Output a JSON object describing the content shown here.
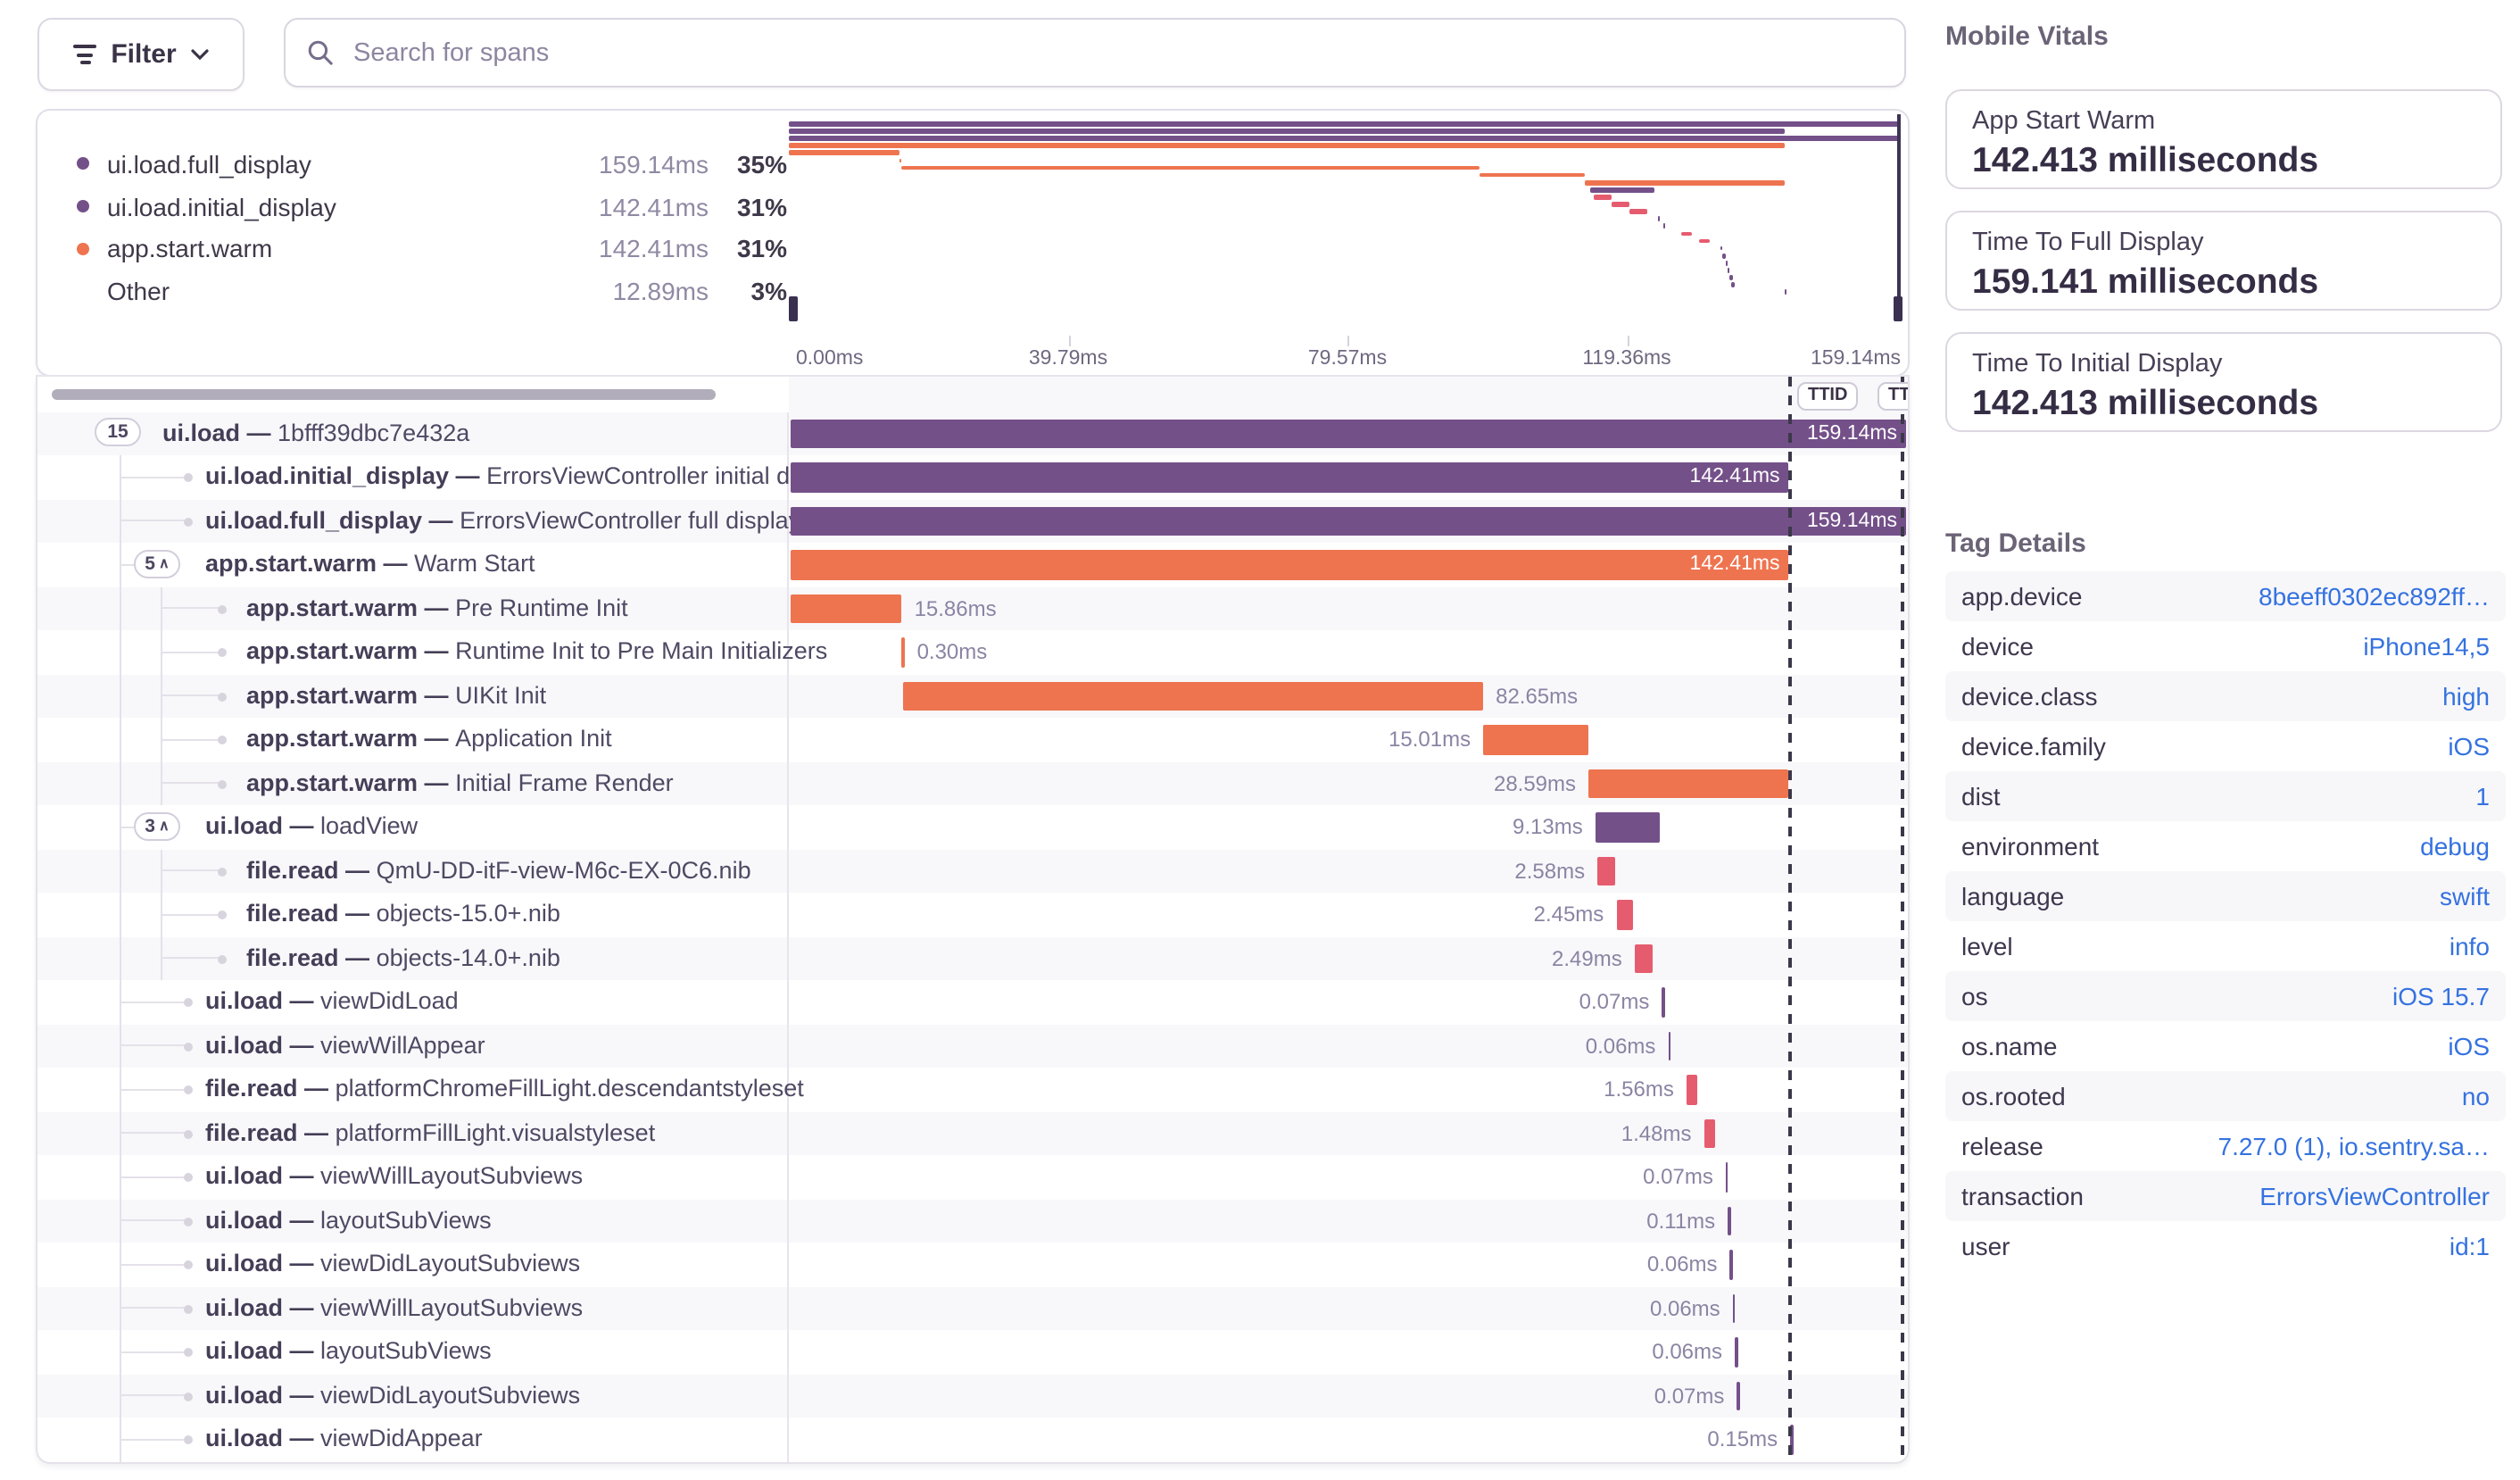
{
  "toolbar": {
    "filter_label": "Filter",
    "search_placeholder": "Search for spans"
  },
  "legend": {
    "items": [
      {
        "name": "ui.load.full_display",
        "dot": "purple",
        "value": "159.14ms",
        "pct": "35%"
      },
      {
        "name": "ui.load.initial_display",
        "dot": "purple",
        "value": "142.41ms",
        "pct": "31%"
      },
      {
        "name": "app.start.warm",
        "dot": "orange",
        "value": "142.41ms",
        "pct": "31%"
      },
      {
        "name": "Other",
        "dot": "none",
        "value": "12.89ms",
        "pct": "3%"
      }
    ]
  },
  "axis": {
    "ticks": [
      "0.00ms",
      "39.79ms",
      "79.57ms",
      "119.36ms",
      "159.14ms"
    ]
  },
  "markers": {
    "ttid": "TTID",
    "ttfd": "TTFD",
    "ttid_ms": 142.41,
    "ttfd_ms": 159.14
  },
  "waterfall": {
    "total_ms": 159.14
  },
  "rows": [
    {
      "op": "ui.load",
      "desc": "1bfff39dbc7e432a",
      "count": "15",
      "chevron": false,
      "indent": 0,
      "bar": {
        "start": 0,
        "dur": 159.14,
        "color": "purple",
        "label": "159.14ms",
        "pos": "inside"
      }
    },
    {
      "op": "ui.load.initial_display",
      "desc": "ErrorsViewController initial display",
      "count": null,
      "chevron": false,
      "indent": 1,
      "bar": {
        "start": 0,
        "dur": 142.41,
        "color": "purple",
        "label": "142.41ms",
        "pos": "inside"
      }
    },
    {
      "op": "ui.load.full_display",
      "desc": "ErrorsViewController full display",
      "count": null,
      "chevron": false,
      "indent": 1,
      "bar": {
        "start": 0,
        "dur": 159.14,
        "color": "purple",
        "label": "159.14ms",
        "pos": "inside"
      }
    },
    {
      "op": "app.start.warm",
      "desc": "Warm Start",
      "count": "5",
      "chevron": true,
      "indent": 1,
      "bar": {
        "start": 0,
        "dur": 142.41,
        "color": "orange",
        "label": "142.41ms",
        "pos": "inside"
      }
    },
    {
      "op": "app.start.warm",
      "desc": "Pre Runtime Init",
      "count": null,
      "chevron": false,
      "indent": 2,
      "bar": {
        "start": 0,
        "dur": 15.86,
        "color": "orange",
        "label": "15.86ms",
        "pos": "right"
      }
    },
    {
      "op": "app.start.warm",
      "desc": "Runtime Init to Pre Main Initializers",
      "count": null,
      "chevron": false,
      "indent": 2,
      "bar": {
        "start": 15.86,
        "dur": 0.3,
        "color": "orange",
        "label": "0.30ms",
        "pos": "right"
      }
    },
    {
      "op": "app.start.warm",
      "desc": "UIKit Init",
      "count": null,
      "chevron": false,
      "indent": 2,
      "bar": {
        "start": 16.16,
        "dur": 82.65,
        "color": "orange",
        "label": "82.65ms",
        "pos": "right"
      }
    },
    {
      "op": "app.start.warm",
      "desc": "Application Init",
      "count": null,
      "chevron": false,
      "indent": 2,
      "bar": {
        "start": 98.81,
        "dur": 15.01,
        "color": "orange",
        "label": "15.01ms",
        "pos": "left"
      }
    },
    {
      "op": "app.start.warm",
      "desc": "Initial Frame Render",
      "count": null,
      "chevron": false,
      "indent": 2,
      "bar": {
        "start": 113.82,
        "dur": 28.59,
        "color": "orange",
        "label": "28.59ms",
        "pos": "left"
      }
    },
    {
      "op": "ui.load",
      "desc": "loadView",
      "count": "3",
      "chevron": true,
      "indent": 1,
      "bar": {
        "start": 114.8,
        "dur": 9.13,
        "color": "purple",
        "label": "9.13ms",
        "pos": "left"
      }
    },
    {
      "op": "file.read",
      "desc": "QmU-DD-itF-view-M6c-EX-0C6.nib",
      "count": null,
      "chevron": false,
      "indent": 2,
      "bar": {
        "start": 115.1,
        "dur": 2.58,
        "color": "pink",
        "label": "2.58ms",
        "pos": "left"
      }
    },
    {
      "op": "file.read",
      "desc": "objects-15.0+.nib",
      "count": null,
      "chevron": false,
      "indent": 2,
      "bar": {
        "start": 117.8,
        "dur": 2.45,
        "color": "pink",
        "label": "2.45ms",
        "pos": "left"
      }
    },
    {
      "op": "file.read",
      "desc": "objects-14.0+.nib",
      "count": null,
      "chevron": false,
      "indent": 2,
      "bar": {
        "start": 120.4,
        "dur": 2.49,
        "color": "pink",
        "label": "2.49ms",
        "pos": "left"
      }
    },
    {
      "op": "ui.load",
      "desc": "viewDidLoad",
      "count": null,
      "chevron": false,
      "indent": 1,
      "bar": {
        "start": 124.3,
        "dur": 0.07,
        "color": "purple",
        "label": "0.07ms",
        "pos": "left"
      }
    },
    {
      "op": "ui.load",
      "desc": "viewWillAppear",
      "count": null,
      "chevron": false,
      "indent": 1,
      "bar": {
        "start": 125.2,
        "dur": 0.06,
        "color": "purple",
        "label": "0.06ms",
        "pos": "left"
      }
    },
    {
      "op": "file.read",
      "desc": "platformChromeFillLight.descendantstyleset",
      "count": null,
      "chevron": false,
      "indent": 1,
      "bar": {
        "start": 127.8,
        "dur": 1.56,
        "color": "pink",
        "label": "1.56ms",
        "pos": "left"
      }
    },
    {
      "op": "file.read",
      "desc": "platformFillLight.visualstyleset",
      "count": null,
      "chevron": false,
      "indent": 1,
      "bar": {
        "start": 130.3,
        "dur": 1.48,
        "color": "pink",
        "label": "1.48ms",
        "pos": "left"
      }
    },
    {
      "op": "ui.load",
      "desc": "viewWillLayoutSubviews",
      "count": null,
      "chevron": false,
      "indent": 1,
      "bar": {
        "start": 133.4,
        "dur": 0.07,
        "color": "purple",
        "label": "0.07ms",
        "pos": "left"
      }
    },
    {
      "op": "ui.load",
      "desc": "layoutSubViews",
      "count": null,
      "chevron": false,
      "indent": 1,
      "bar": {
        "start": 133.7,
        "dur": 0.11,
        "color": "purple",
        "label": "0.11ms",
        "pos": "left"
      }
    },
    {
      "op": "ui.load",
      "desc": "viewDidLayoutSubviews",
      "count": null,
      "chevron": false,
      "indent": 1,
      "bar": {
        "start": 134.0,
        "dur": 0.06,
        "color": "purple",
        "label": "0.06ms",
        "pos": "left"
      }
    },
    {
      "op": "ui.load",
      "desc": "viewWillLayoutSubviews",
      "count": null,
      "chevron": false,
      "indent": 1,
      "bar": {
        "start": 134.4,
        "dur": 0.06,
        "color": "purple",
        "label": "0.06ms",
        "pos": "left"
      }
    },
    {
      "op": "ui.load",
      "desc": "layoutSubViews",
      "count": null,
      "chevron": false,
      "indent": 1,
      "bar": {
        "start": 134.7,
        "dur": 0.06,
        "color": "purple",
        "label": "0.06ms",
        "pos": "left"
      }
    },
    {
      "op": "ui.load",
      "desc": "viewDidLayoutSubviews",
      "count": null,
      "chevron": false,
      "indent": 1,
      "bar": {
        "start": 135.0,
        "dur": 0.07,
        "color": "purple",
        "label": "0.07ms",
        "pos": "left"
      }
    },
    {
      "op": "ui.load",
      "desc": "viewDidAppear",
      "count": null,
      "chevron": false,
      "indent": 1,
      "bar": {
        "start": 142.6,
        "dur": 0.15,
        "color": "purple",
        "label": "0.15ms",
        "pos": "left"
      }
    }
  ],
  "vitals": {
    "heading": "Mobile Vitals",
    "cards": [
      {
        "title": "App Start Warm",
        "value": "142.413 milliseconds"
      },
      {
        "title": "Time To Full Display",
        "value": "159.141 milliseconds"
      },
      {
        "title": "Time To Initial Display",
        "value": "142.413 milliseconds"
      }
    ]
  },
  "tags": {
    "heading": "Tag Details",
    "rows": [
      {
        "key": "app.device",
        "value": "8beeff0302ec892ff…"
      },
      {
        "key": "device",
        "value": "iPhone14,5"
      },
      {
        "key": "device.class",
        "value": "high"
      },
      {
        "key": "device.family",
        "value": "iOS"
      },
      {
        "key": "dist",
        "value": "1"
      },
      {
        "key": "environment",
        "value": "debug"
      },
      {
        "key": "language",
        "value": "swift"
      },
      {
        "key": "level",
        "value": "info"
      },
      {
        "key": "os",
        "value": "iOS 15.7"
      },
      {
        "key": "os.name",
        "value": "iOS"
      },
      {
        "key": "os.rooted",
        "value": "no"
      },
      {
        "key": "release",
        "value": "7.27.0 (1), io.sentry.sa…"
      },
      {
        "key": "transaction",
        "value": "ErrorsViewController"
      },
      {
        "key": "user",
        "value": "id:1"
      }
    ]
  },
  "colors": {
    "purple": "#745089",
    "orange": "#ee7450",
    "pink": "#e65c6f",
    "link_blue": "#3572e0"
  }
}
